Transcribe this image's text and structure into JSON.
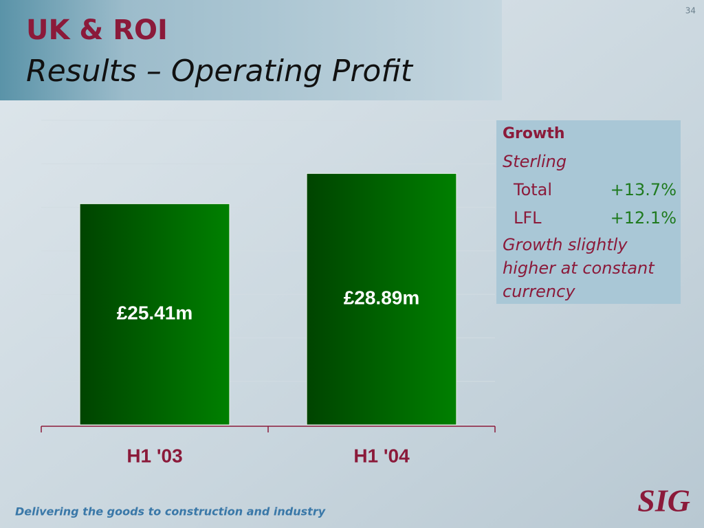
{
  "page_number": "34",
  "header": {
    "title": "UK & ROI",
    "subtitle": "Results – Operating Profit"
  },
  "chart_data": {
    "type": "bar",
    "categories": [
      "H1 '03",
      "H1 '04"
    ],
    "values": [
      25.41,
      28.89
    ],
    "value_labels": [
      "£25.41m",
      "£28.89m"
    ],
    "color": "#008000",
    "ylim": [
      0,
      35
    ],
    "yticks": [
      0,
      5,
      10,
      15,
      20,
      25,
      30,
      35
    ],
    "grid": true
  },
  "growth_box": {
    "heading": "Growth",
    "subheading": "Sterling",
    "rows": [
      [
        "Total",
        "+13.7%"
      ],
      [
        "LFL",
        "+12.1%"
      ]
    ],
    "note": [
      "Growth slightly",
      "higher at constant",
      "currency"
    ]
  },
  "footer": {
    "tagline": "Delivering the goods to construction and industry",
    "logo": "SIG"
  }
}
